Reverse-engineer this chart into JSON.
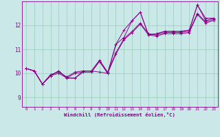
{
  "xlabel": "Windchill (Refroidissement éolien,°C)",
  "background_color": "#cbe8e8",
  "line_color": "#880088",
  "grid_color": "#99ccbb",
  "x_ticks": [
    0,
    1,
    2,
    3,
    4,
    5,
    6,
    7,
    8,
    9,
    10,
    11,
    12,
    13,
    14,
    15,
    16,
    17,
    18,
    19,
    20,
    21,
    22,
    23
  ],
  "y_ticks": [
    9,
    10,
    11,
    12
  ],
  "ylim": [
    8.6,
    13.0
  ],
  "xlim": [
    -0.5,
    23.5
  ],
  "series": [
    [
      10.2,
      10.1,
      9.55,
      9.9,
      10.1,
      9.8,
      9.8,
      10.1,
      10.1,
      10.05,
      10.0,
      11.2,
      11.5,
      12.2,
      12.55,
      11.6,
      11.65,
      11.75,
      11.75,
      11.75,
      11.8,
      12.85,
      12.3,
      12.3
    ],
    [
      10.2,
      10.1,
      9.55,
      9.9,
      10.0,
      9.8,
      10.0,
      10.05,
      10.05,
      10.5,
      10.0,
      10.8,
      11.4,
      11.7,
      12.05,
      11.6,
      11.55,
      11.65,
      11.65,
      11.65,
      11.7,
      12.45,
      12.1,
      12.2
    ],
    [
      10.2,
      10.1,
      9.55,
      9.95,
      10.05,
      9.85,
      10.05,
      10.1,
      10.1,
      10.55,
      10.05,
      10.85,
      11.45,
      11.75,
      12.1,
      11.65,
      11.6,
      11.7,
      11.7,
      11.7,
      11.75,
      12.5,
      12.15,
      12.25
    ],
    [
      10.2,
      10.1,
      9.55,
      9.9,
      10.1,
      9.8,
      9.8,
      10.05,
      10.05,
      10.5,
      10.0,
      11.2,
      11.8,
      12.2,
      12.55,
      11.6,
      11.65,
      11.75,
      11.75,
      11.75,
      11.8,
      12.85,
      12.2,
      12.3
    ]
  ]
}
